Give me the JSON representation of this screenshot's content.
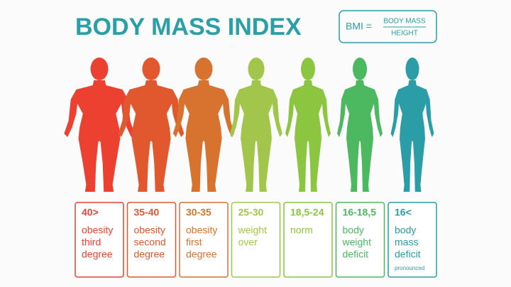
{
  "header": {
    "title": "BODY MASS INDEX",
    "formula": {
      "lhs": "BMI =",
      "numerator": "BODY MASS",
      "denominator": "HEIGHT"
    }
  },
  "categories": [
    {
      "range": "40>",
      "lines": [
        "obesity",
        "third",
        "degree"
      ],
      "color": "#ec4130"
    },
    {
      "range": "35-40",
      "lines": [
        "obesity",
        "second",
        "degree"
      ],
      "color": "#e2582e"
    },
    {
      "range": "30-35",
      "lines": [
        "obesity",
        "first",
        "degree"
      ],
      "color": "#d8722f"
    },
    {
      "range": "25-30",
      "lines": [
        "weight",
        "over"
      ],
      "color": "#a1c64b"
    },
    {
      "range": "18,5-24",
      "lines": [
        "norm"
      ],
      "color": "#8cc540"
    },
    {
      "range": "16-18,5",
      "lines": [
        "body",
        "weight",
        "deficit"
      ],
      "color": "#4cb960"
    },
    {
      "range": "16<",
      "lines": [
        "body",
        "mass",
        "deficit"
      ],
      "note": "pronounced",
      "color": "#2a9da6"
    }
  ]
}
